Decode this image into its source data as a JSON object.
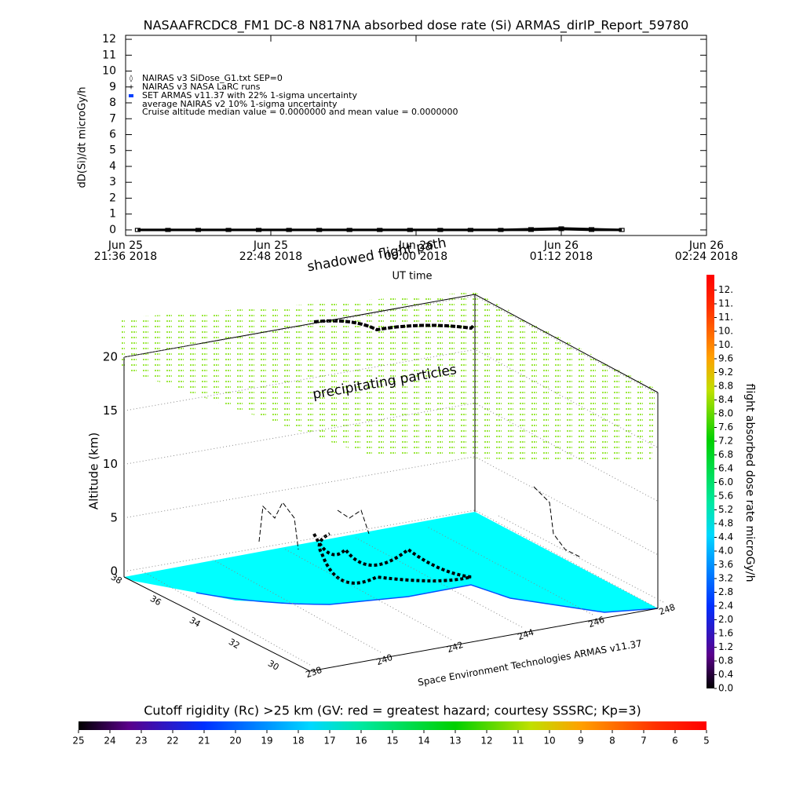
{
  "chart_data": [
    {
      "type": "line",
      "title": "NASAAFRCDC8_FM1 DC-8   N817NA absorbed dose rate (Si) ARMAS_dirIP_Report_59780",
      "ylabel": "dD(Si)/dt microGy/h",
      "xlabel": "UT time",
      "note": "Cruise altitude median value = 0.0000000 and mean value = 0.0000000",
      "x": [
        "2018-06-25T21:42",
        "2018-06-25T21:57",
        "2018-06-25T22:12",
        "2018-06-25T22:27",
        "2018-06-25T22:42",
        "2018-06-25T22:57",
        "2018-06-25T23:12",
        "2018-06-25T23:27",
        "2018-06-25T23:42",
        "2018-06-25T23:57",
        "2018-06-26T00:12",
        "2018-06-26T00:27",
        "2018-06-26T00:42",
        "2018-06-26T00:57",
        "2018-06-26T01:12",
        "2018-06-26T01:27",
        "2018-06-26T01:42"
      ],
      "series": [
        {
          "name": "NAIRAS v3 SiDose_G1.txt SEP=0",
          "color": "#000000",
          "values": [
            0,
            0,
            0,
            0,
            0,
            0,
            0,
            0,
            0,
            0,
            0,
            0,
            0,
            0.05,
            0.1,
            0.05,
            0
          ]
        },
        {
          "name": "NAIRAS v3 NASA LaRC runs",
          "color": "#000000",
          "values": [
            0,
            0,
            0,
            0,
            0,
            0,
            0,
            0,
            0,
            0,
            0,
            0,
            0,
            0,
            0.05,
            0,
            0
          ]
        },
        {
          "name": "SET ARMAS v11.37 with 22% 1-sigma uncertainty",
          "color": "#0040ff",
          "values": [
            null,
            null,
            null,
            null,
            null,
            null,
            null,
            null,
            null,
            null,
            null,
            null,
            null,
            null,
            null,
            null,
            null
          ]
        },
        {
          "name": "average NAIRAS v2 10% 1-sigma uncertainty",
          "color": "#000000",
          "values": [
            null,
            null,
            null,
            null,
            null,
            null,
            null,
            null,
            null,
            null,
            null,
            null,
            null,
            null,
            null,
            null,
            null
          ]
        }
      ],
      "xlim": [
        "2018-06-25T21:36",
        "2018-06-26T02:24"
      ],
      "xticks": [
        {
          "value": "2018-06-25T21:36",
          "label": "Jun 25\n21:36 2018"
        },
        {
          "value": "2018-06-25T22:48",
          "label": "Jun 25\n22:48 2018"
        },
        {
          "value": "2018-06-26T00:00",
          "label": "Jun 26\n00:00 2018"
        },
        {
          "value": "2018-06-26T01:12",
          "label": "Jun 26\n01:12 2018"
        },
        {
          "value": "2018-06-26T02:24",
          "label": "Jun 26\n02:24 2018"
        }
      ],
      "ylim": [
        -0.35,
        12.25
      ],
      "yticks": [
        0,
        1,
        2,
        3,
        4,
        5,
        6,
        7,
        8,
        9,
        10,
        11,
        12
      ]
    },
    {
      "type": "surface3d",
      "zlabel": "Altitude (km)",
      "annotations": [
        "shadowed flight path",
        "precipitating particles"
      ],
      "credit": "Space Environment Technologies ARMAS v11.37",
      "zlim": [
        0,
        20
      ],
      "zticks": [
        0,
        5,
        10,
        15,
        20
      ],
      "yticks": [
        38,
        36,
        34,
        32,
        30
      ],
      "xticks": [
        238,
        240,
        242,
        244,
        246,
        248
      ]
    },
    {
      "type": "colorbar",
      "label": "flight absorbed dose rate microGy/h",
      "lim": [
        0,
        12
      ],
      "ticks": [
        {
          "value": 0,
          "label": "0.0"
        },
        {
          "value": 0.4,
          "label": "0.4"
        },
        {
          "value": 0.8,
          "label": "0.8"
        },
        {
          "value": 1.2,
          "label": "1.2"
        },
        {
          "value": 1.6,
          "label": "1.6"
        },
        {
          "value": 2,
          "label": "2.0"
        },
        {
          "value": 2.4,
          "label": "2.4"
        },
        {
          "value": 2.8,
          "label": "2.8"
        },
        {
          "value": 3.2,
          "label": "3.2"
        },
        {
          "value": 3.6,
          "label": "3.6"
        },
        {
          "value": 4,
          "label": "4.0"
        },
        {
          "value": 4.4,
          "label": "4.4"
        },
        {
          "value": 4.8,
          "label": "4.8"
        },
        {
          "value": 5.2,
          "label": "5.2"
        },
        {
          "value": 5.6,
          "label": "5.6"
        },
        {
          "value": 6,
          "label": "6.0"
        },
        {
          "value": 6.4,
          "label": "6.4"
        },
        {
          "value": 6.8,
          "label": "6.8"
        },
        {
          "value": 7.2,
          "label": "7.2"
        },
        {
          "value": 7.6,
          "label": "7.6"
        },
        {
          "value": 8,
          "label": "8.0"
        },
        {
          "value": 8.4,
          "label": "8.4"
        },
        {
          "value": 8.8,
          "label": "8.8"
        },
        {
          "value": 9.2,
          "label": "9.2"
        },
        {
          "value": 9.6,
          "label": "9.6"
        },
        {
          "value": 10,
          "label": "10."
        },
        {
          "value": 10.4,
          "label": "10."
        },
        {
          "value": 10.8,
          "label": "11."
        },
        {
          "value": 11.2,
          "label": "11."
        },
        {
          "value": 11.6,
          "label": "12."
        }
      ]
    },
    {
      "type": "colorbar",
      "label": "Cutoff rigidity (Rc) >25 km (GV: red = greatest hazard; courtesy SSSRC; Kp=3)",
      "lim": [
        25,
        5
      ],
      "ticks": [
        25,
        24,
        23,
        22,
        21,
        20,
        19,
        18,
        17,
        16,
        15,
        14,
        13,
        12,
        11,
        10,
        9,
        8,
        7,
        6,
        5
      ]
    }
  ]
}
